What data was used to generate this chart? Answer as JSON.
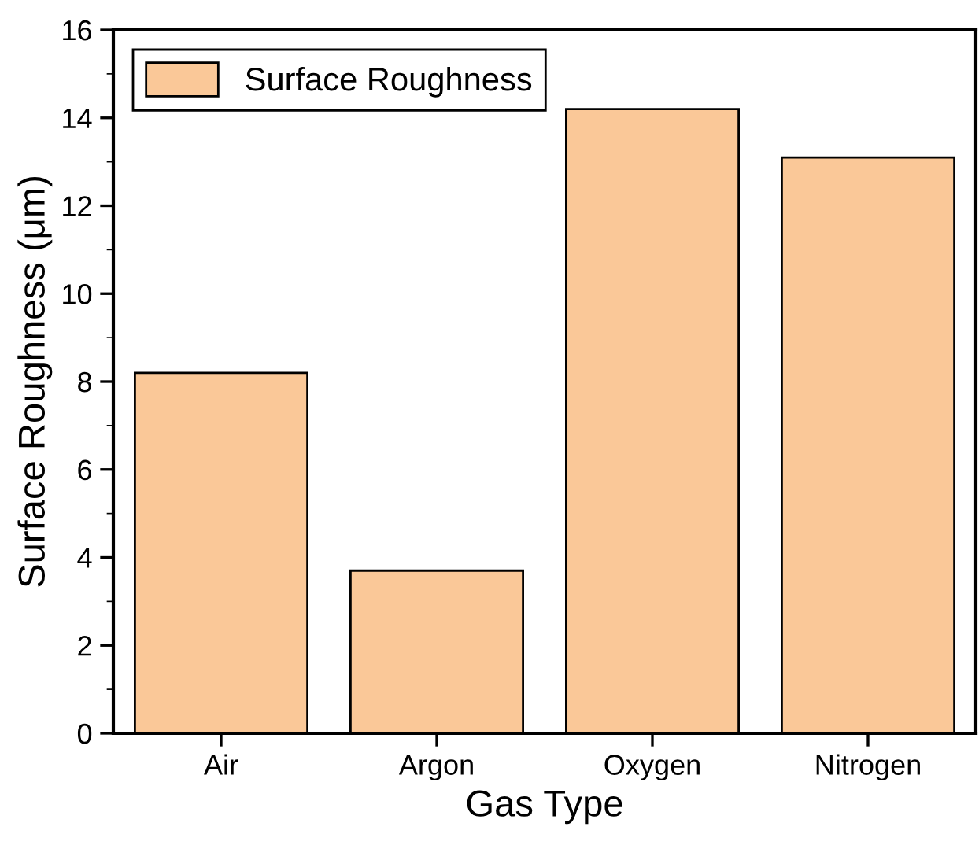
{
  "chart_data": {
    "type": "bar",
    "xlabel": "Gas Type",
    "ylabel": "Surface Roughness (μm)",
    "categories": [
      "Air",
      "Argon",
      "Oxygen",
      "Nitrogen"
    ],
    "series": [
      {
        "name": "Surface Roughness",
        "color": "#fac898",
        "values": [
          8.2,
          3.7,
          14.2,
          13.1
        ]
      }
    ],
    "ylim": [
      0,
      16
    ],
    "yticks": [
      0,
      2,
      4,
      6,
      8,
      10,
      12,
      14,
      16
    ],
    "legend": "top left",
    "grid": false
  }
}
